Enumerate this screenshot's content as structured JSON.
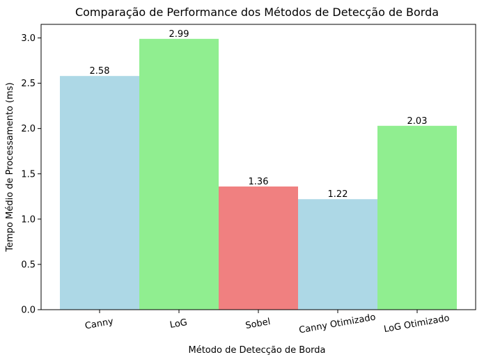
{
  "chart_data": {
    "type": "bar",
    "title": "Comparação de Performance dos Métodos de Detecção de Borda",
    "xlabel": "Método de Detecção de Borda",
    "ylabel": "Tempo Médio de Processamento (ms)",
    "categories": [
      "Canny",
      "LoG",
      "Sobel",
      "Canny Otimizado",
      "LoG Otimizado"
    ],
    "values": [
      2.58,
      2.99,
      1.36,
      1.22,
      2.03
    ],
    "value_labels": [
      "2.58",
      "2.99",
      "1.36",
      "1.22",
      "2.03"
    ],
    "bar_colors": [
      "#add8e6",
      "#90ee90",
      "#f08080",
      "#add8e6",
      "#90ee90"
    ],
    "ylim": [
      0,
      3.15
    ],
    "yticks": [
      0.0,
      0.5,
      1.0,
      1.5,
      2.0,
      2.5,
      3.0
    ],
    "ytick_labels": [
      "0.0",
      "0.5",
      "1.0",
      "1.5",
      "2.0",
      "2.5",
      "3.0"
    ],
    "x_tick_label_rotation": "slanted",
    "grid": false,
    "legend": "none"
  }
}
